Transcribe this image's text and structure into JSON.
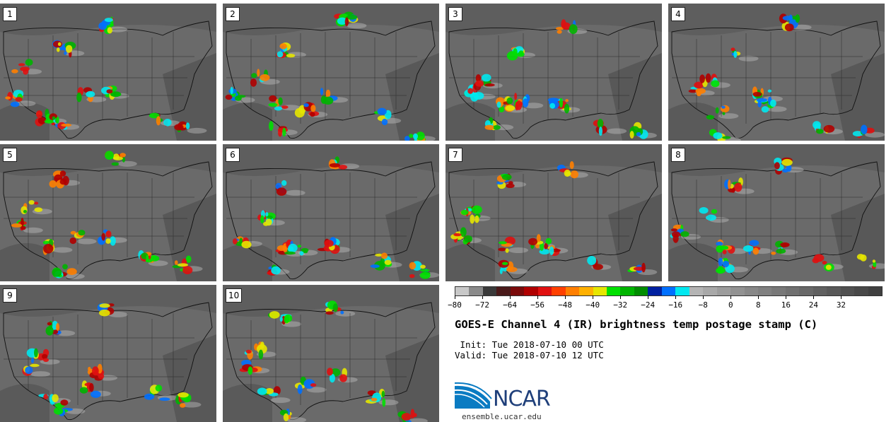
{
  "panels": [
    {
      "label": "1"
    },
    {
      "label": "2"
    },
    {
      "label": "3"
    },
    {
      "label": "4"
    },
    {
      "label": "5"
    },
    {
      "label": "6"
    },
    {
      "label": "7"
    },
    {
      "label": "8"
    },
    {
      "label": "9"
    },
    {
      "label": "10"
    }
  ],
  "colorbar": {
    "ticks": [
      "−80",
      "−72",
      "−64",
      "−56",
      "−48",
      "−40",
      "−32",
      "−24",
      "−16",
      "−8",
      "0",
      "8",
      "16",
      "24",
      "32"
    ],
    "colors": [
      "#c8c8c8",
      "#8a8a8a",
      "#3a3a3a",
      "#4a1a1a",
      "#7a0a0a",
      "#b00000",
      "#e01010",
      "#ff4000",
      "#ff7f00",
      "#ffb000",
      "#e6e600",
      "#00e000",
      "#00b400",
      "#008c00",
      "#0020a0",
      "#0070ff",
      "#00e8f0",
      "#b4b4b4",
      "#a8a8a8",
      "#9c9c9c",
      "#929292",
      "#888888",
      "#808080",
      "#787878",
      "#707070",
      "#686868",
      "#606060",
      "#585858",
      "#505050",
      "#484848",
      "#404040"
    ]
  },
  "title": "GOES-E Channel 4 (IR) brightness temp postage stamp (C)",
  "init_line": " Init: Tue 2018-07-10 00 UTC",
  "valid_line": "Valid: Tue 2018-07-10 12 UTC",
  "logo_text": "NCAR",
  "url": "ensemble.ucar.edu"
}
